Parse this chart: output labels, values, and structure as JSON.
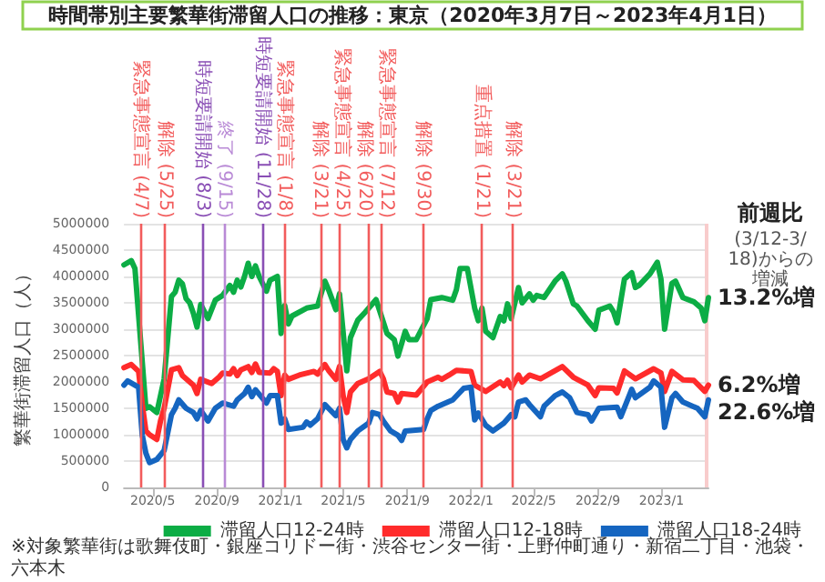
{
  "chart_data": {
    "type": "line",
    "title": "時間帯別主要繁華街滞留人口の推移：東京（2020年3月7日～2023年4月1日）",
    "ylabel": "繁華街滞留人口（人）",
    "xlim": [
      "2020-03-07",
      "2023-04-01"
    ],
    "ylim": [
      0,
      5000000
    ],
    "yticks": [
      0,
      500000,
      1000000,
      1500000,
      2000000,
      2500000,
      3000000,
      3500000,
      4000000,
      4500000,
      5000000
    ],
    "xticks": [
      {
        "value": "2020-05-01",
        "label": "2020/5"
      },
      {
        "value": "2020-09-01",
        "label": "2020/9"
      },
      {
        "value": "2021-01-01",
        "label": "2021/1"
      },
      {
        "value": "2021-05-01",
        "label": "2021/5"
      },
      {
        "value": "2021-09-01",
        "label": "2021/9"
      },
      {
        "value": "2022-01-01",
        "label": "2022/1"
      },
      {
        "value": "2022-05-01",
        "label": "2022/5"
      },
      {
        "value": "2022-09-01",
        "label": "2022/9"
      },
      {
        "value": "2023-01-01",
        "label": "2023/1"
      }
    ],
    "grid": "y",
    "legend": "bottom",
    "marker": "none",
    "line_style": "solid",
    "series": [
      {
        "name": "滞留人口12-24時",
        "color": "#0cad45",
        "x": [
          "2020-03-07",
          "2020-03-21",
          "2020-03-28",
          "2020-04-18",
          "2020-04-25",
          "2020-05-09",
          "2020-05-23",
          "2020-06-06",
          "2020-06-13",
          "2020-06-20",
          "2020-06-27",
          "2020-07-04",
          "2020-07-11",
          "2020-07-18",
          "2020-07-25",
          "2020-08-01",
          "2020-08-15",
          "2020-08-29",
          "2020-09-12",
          "2020-09-26",
          "2020-10-03",
          "2020-10-10",
          "2020-10-17",
          "2020-10-24",
          "2020-10-31",
          "2020-11-07",
          "2020-11-14",
          "2020-11-21",
          "2020-12-05",
          "2020-12-12",
          "2020-12-26",
          "2021-01-02",
          "2021-01-09",
          "2021-01-16",
          "2021-01-23",
          "2021-02-20",
          "2021-03-13",
          "2021-03-27",
          "2021-04-03",
          "2021-04-17",
          "2021-04-24",
          "2021-05-08",
          "2021-05-15",
          "2021-05-29",
          "2021-06-12",
          "2021-07-03",
          "2021-07-10",
          "2021-07-24",
          "2021-08-07",
          "2021-08-14",
          "2021-08-28",
          "2021-09-04",
          "2021-09-18",
          "2021-10-09",
          "2021-10-16",
          "2021-11-06",
          "2021-11-27",
          "2021-12-04",
          "2021-12-11",
          "2021-12-25",
          "2022-01-08",
          "2022-01-15",
          "2022-01-22",
          "2022-01-29",
          "2022-02-12",
          "2022-02-26",
          "2022-03-05",
          "2022-03-12",
          "2022-03-19",
          "2022-04-02",
          "2022-04-09",
          "2022-04-23",
          "2022-04-30",
          "2022-05-07",
          "2022-05-21",
          "2022-06-11",
          "2022-06-25",
          "2022-07-02",
          "2022-07-16",
          "2022-07-23",
          "2022-08-13",
          "2022-08-27",
          "2022-09-03",
          "2022-09-24",
          "2022-10-01",
          "2022-10-08",
          "2022-10-22",
          "2022-11-05",
          "2022-11-12",
          "2022-11-19",
          "2022-12-10",
          "2022-12-24",
          "2022-12-31",
          "2023-01-07",
          "2023-01-21",
          "2023-01-28",
          "2023-02-11",
          "2023-03-04",
          "2023-03-18",
          "2023-03-25",
          "2023-04-01"
        ],
        "values": [
          4220000,
          4300000,
          4150000,
          1500000,
          1530000,
          1420000,
          2060000,
          3620000,
          3700000,
          3930000,
          3860000,
          3580000,
          3500000,
          3300000,
          3040000,
          3470000,
          3200000,
          3550000,
          3640000,
          3830000,
          3700000,
          3930000,
          3800000,
          4000000,
          4250000,
          4000000,
          4200000,
          4000000,
          3720000,
          3930000,
          4000000,
          2920000,
          3450000,
          3100000,
          3250000,
          3400000,
          3440000,
          3910000,
          3750000,
          3370000,
          3670000,
          2210000,
          2840000,
          3170000,
          3320000,
          3560000,
          3350000,
          2920000,
          2800000,
          2490000,
          2960000,
          2800000,
          2800000,
          3200000,
          3560000,
          3600000,
          3550000,
          3750000,
          4150000,
          4150000,
          3400000,
          3160000,
          3400000,
          2960000,
          2840000,
          3240000,
          3160000,
          3480000,
          3200000,
          3790000,
          3500000,
          3670000,
          3550000,
          3640000,
          3600000,
          3910000,
          4050000,
          3910000,
          3480000,
          3440000,
          3160000,
          3000000,
          3360000,
          3440000,
          3330000,
          3120000,
          3950000,
          4070000,
          3790000,
          3830000,
          4050000,
          4270000,
          3950000,
          3000000,
          3870000,
          3910000,
          3600000,
          3520000,
          3400000,
          3160000,
          3600000
        ]
      },
      {
        "name": "滞留人口12-18時",
        "color": "#ff2b2b",
        "x": [
          "2020-03-07",
          "2020-03-21",
          "2020-04-04",
          "2020-04-11",
          "2020-04-18",
          "2020-04-25",
          "2020-05-09",
          "2020-05-16",
          "2020-05-23",
          "2020-06-06",
          "2020-06-20",
          "2020-06-27",
          "2020-07-18",
          "2020-07-25",
          "2020-08-01",
          "2020-08-22",
          "2020-09-05",
          "2020-09-12",
          "2020-09-26",
          "2020-10-03",
          "2020-10-10",
          "2020-10-17",
          "2020-10-31",
          "2020-11-07",
          "2020-11-14",
          "2020-11-21",
          "2020-12-12",
          "2020-12-19",
          "2020-12-26",
          "2021-01-02",
          "2021-01-09",
          "2021-01-16",
          "2021-02-06",
          "2021-03-06",
          "2021-03-13",
          "2021-03-27",
          "2021-04-03",
          "2021-04-17",
          "2021-04-24",
          "2021-05-01",
          "2021-05-08",
          "2021-05-15",
          "2021-05-29",
          "2021-06-19",
          "2021-07-10",
          "2021-07-17",
          "2021-07-24",
          "2021-08-07",
          "2021-08-14",
          "2021-08-21",
          "2021-09-18",
          "2021-10-09",
          "2021-10-30",
          "2021-11-06",
          "2021-11-20",
          "2021-12-04",
          "2022-01-01",
          "2022-01-08",
          "2022-01-29",
          "2022-02-26",
          "2022-03-05",
          "2022-03-12",
          "2022-03-19",
          "2022-04-02",
          "2022-04-09",
          "2022-04-23",
          "2022-05-14",
          "2022-06-25",
          "2022-07-16",
          "2022-08-13",
          "2022-08-27",
          "2022-09-03",
          "2022-10-01",
          "2022-10-08",
          "2022-10-22",
          "2022-11-12",
          "2022-12-17",
          "2022-12-31",
          "2023-01-07",
          "2023-01-21",
          "2023-02-11",
          "2023-03-04",
          "2023-03-25",
          "2023-04-01"
        ],
        "values": [
          2270000,
          2330000,
          2200000,
          1580000,
          1070000,
          1000000,
          910000,
          1260000,
          1500000,
          2230000,
          2270000,
          2120000,
          1940000,
          1780000,
          2050000,
          1970000,
          2090000,
          2170000,
          2150000,
          2250000,
          2120000,
          2230000,
          2290000,
          2180000,
          2340000,
          2180000,
          2170000,
          2250000,
          2200000,
          1740000,
          2130000,
          2050000,
          2130000,
          2200000,
          2150000,
          2330000,
          2220000,
          2050000,
          2290000,
          1740000,
          1420000,
          1810000,
          1970000,
          2060000,
          2200000,
          2060000,
          1810000,
          1780000,
          1620000,
          1780000,
          1750000,
          2000000,
          2090000,
          2050000,
          2130000,
          2220000,
          2200000,
          1940000,
          1820000,
          2000000,
          1930000,
          2030000,
          1890000,
          2130000,
          2000000,
          2130000,
          2060000,
          2290000,
          2090000,
          1940000,
          1740000,
          1890000,
          1880000,
          1790000,
          2210000,
          2060000,
          2250000,
          2170000,
          1820000,
          2200000,
          2040000,
          2030000,
          1820000,
          1940000
        ]
      },
      {
        "name": "滞留人口18-24時",
        "color": "#1565c0",
        "x": [
          "2020-03-07",
          "2020-03-14",
          "2020-04-04",
          "2020-04-11",
          "2020-04-18",
          "2020-04-25",
          "2020-05-09",
          "2020-05-23",
          "2020-06-06",
          "2020-06-13",
          "2020-06-20",
          "2020-07-04",
          "2020-07-18",
          "2020-07-25",
          "2020-08-01",
          "2020-08-15",
          "2020-08-29",
          "2020-09-12",
          "2020-10-03",
          "2020-10-10",
          "2020-10-24",
          "2020-10-31",
          "2020-11-07",
          "2020-11-14",
          "2020-12-05",
          "2020-12-12",
          "2020-12-26",
          "2021-01-02",
          "2021-01-09",
          "2021-01-16",
          "2021-02-13",
          "2021-02-20",
          "2021-02-27",
          "2021-03-13",
          "2021-03-27",
          "2021-04-03",
          "2021-04-17",
          "2021-04-24",
          "2021-05-01",
          "2021-05-08",
          "2021-05-15",
          "2021-05-29",
          "2021-06-19",
          "2021-06-26",
          "2021-07-10",
          "2021-07-17",
          "2021-07-31",
          "2021-08-14",
          "2021-08-21",
          "2021-08-28",
          "2021-10-02",
          "2021-10-09",
          "2021-10-16",
          "2021-10-30",
          "2021-11-27",
          "2021-12-18",
          "2022-01-01",
          "2022-01-08",
          "2022-01-15",
          "2022-01-29",
          "2022-02-12",
          "2022-03-05",
          "2022-03-19",
          "2022-03-26",
          "2022-04-02",
          "2022-04-16",
          "2022-04-23",
          "2022-05-14",
          "2022-05-21",
          "2022-06-11",
          "2022-06-25",
          "2022-07-09",
          "2022-07-23",
          "2022-08-13",
          "2022-08-20",
          "2022-09-03",
          "2022-10-08",
          "2022-10-15",
          "2022-11-05",
          "2022-11-12",
          "2022-12-10",
          "2022-12-17",
          "2022-12-31",
          "2023-01-07",
          "2023-01-21",
          "2023-01-28",
          "2023-02-11",
          "2023-03-11",
          "2023-03-25",
          "2023-04-01"
        ],
        "values": [
          1940000,
          2020000,
          1900000,
          990000,
          650000,
          470000,
          530000,
          700000,
          1380000,
          1500000,
          1660000,
          1500000,
          1420000,
          1300000,
          1460000,
          1260000,
          1500000,
          1600000,
          1540000,
          1660000,
          1780000,
          1900000,
          1720000,
          1850000,
          1600000,
          1740000,
          1740000,
          1220000,
          1300000,
          1100000,
          1140000,
          1240000,
          1180000,
          1300000,
          1570000,
          1500000,
          1360000,
          1500000,
          910000,
          750000,
          910000,
          1070000,
          1220000,
          1420000,
          1380000,
          1260000,
          1070000,
          990000,
          890000,
          1070000,
          1100000,
          1300000,
          1460000,
          1540000,
          1660000,
          1880000,
          1900000,
          1280000,
          1410000,
          1180000,
          1070000,
          1220000,
          1380000,
          1340000,
          1620000,
          1660000,
          1570000,
          1340000,
          1540000,
          1740000,
          1810000,
          1700000,
          1420000,
          1380000,
          1260000,
          1500000,
          1520000,
          1340000,
          1860000,
          1700000,
          1900000,
          2020000,
          1900000,
          1140000,
          1700000,
          1780000,
          1620000,
          1500000,
          1340000,
          1660000
        ]
      }
    ],
    "ref_lines": [
      {
        "axis": "x",
        "value": "2020-04-07",
        "label": "緊急事態宣言 (4/7)",
        "color": "#f25c5c"
      },
      {
        "axis": "x",
        "value": "2020-05-25",
        "label": "解除 (5/25)",
        "color": "#f25c5c"
      },
      {
        "axis": "x",
        "value": "2020-08-03",
        "label": "時短要請開始 (8/3)",
        "color": "#8a4fb5"
      },
      {
        "axis": "x",
        "value": "2020-09-15",
        "label": "終了 (9/15)",
        "color": "#b98ad6"
      },
      {
        "axis": "x",
        "value": "2020-11-28",
        "label": "時短要請開始 (11/28)",
        "color": "#8a4fb5"
      },
      {
        "axis": "x",
        "value": "2021-01-08",
        "label": "緊急事態宣言 (1/8)",
        "color": "#f25c5c"
      },
      {
        "axis": "x",
        "value": "2021-03-21",
        "label": "解除 (3/21)",
        "color": "#f25c5c"
      },
      {
        "axis": "x",
        "value": "2021-04-25",
        "label": "緊急事態宣言 (4/25)",
        "color": "#f25c5c"
      },
      {
        "axis": "x",
        "value": "2021-06-20",
        "label": "解除 (6/20)",
        "color": "#f25c5c"
      },
      {
        "axis": "x",
        "value": "2021-07-12",
        "label": "緊急事態宣言 (7/12)",
        "color": "#f25c5c"
      },
      {
        "axis": "x",
        "value": "2021-09-30",
        "label": "解除 (9/30)",
        "color": "#f25c5c"
      },
      {
        "axis": "x",
        "value": "2022-01-21",
        "label": "重点措置 (1/21)",
        "color": "#f25c5c"
      },
      {
        "axis": "x",
        "value": "2022-03-21",
        "label": "解除 (3/21)",
        "color": "#f25c5c"
      }
    ],
    "bands": [
      {
        "axis": "x",
        "from": "2023-03-25",
        "to": "2023-04-01",
        "color": "#f8cccc"
      }
    ],
    "annotations": [
      "前週比",
      "(3/12-3/18)からの増減",
      {
        "text": "13.2%増",
        "x": "2023-04-01",
        "y": 3600000
      },
      {
        "text": "6.2%増",
        "x": "2023-04-01",
        "y": 1940000
      },
      {
        "text": "22.6%増",
        "x": "2023-04-01",
        "y": 1660000
      },
      "※対象繁華街は歌舞伎町・銀座コリドー街・渋谷センター街・上野仲町通り・新宿二丁目・池袋・六本木"
    ]
  }
}
